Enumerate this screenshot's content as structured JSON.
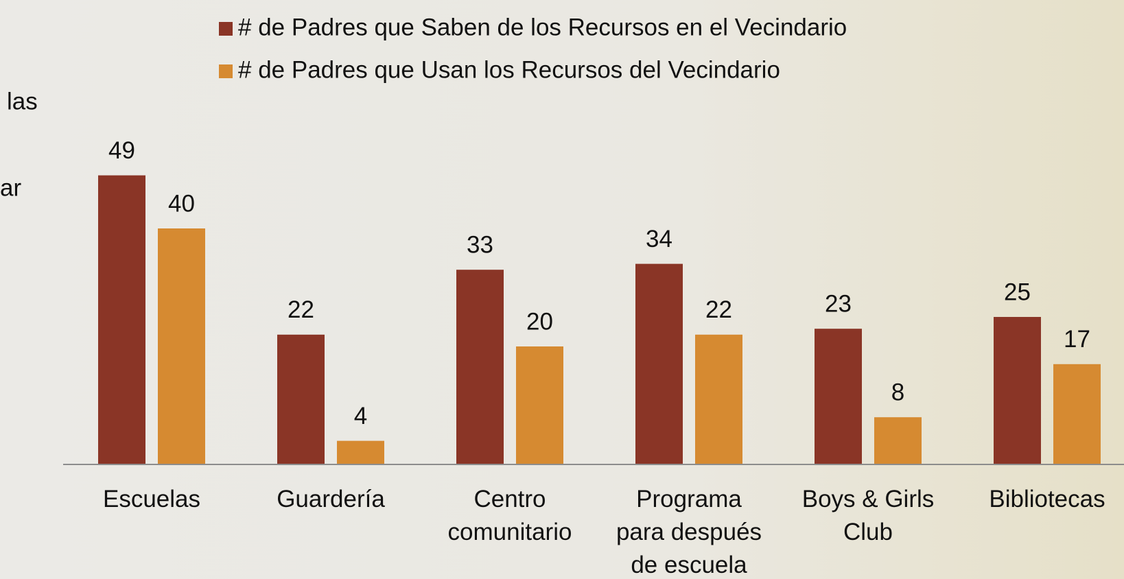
{
  "chart_data": {
    "type": "bar",
    "categories": [
      "Escuelas",
      "Guardería",
      "Centro\ncomunitario",
      "Programa\npara después\nde escuela",
      "Boys & Girls\nClub",
      "Bibliotecas"
    ],
    "series": [
      {
        "name": "# de Padres que Saben de los Recursos en el Vecindario",
        "color": "#8a3526",
        "values": [
          49,
          22,
          33,
          34,
          23,
          25
        ]
      },
      {
        "name": "# de Padres que Usan los Recursos del Vecindario",
        "color": "#d68a31",
        "values": [
          40,
          4,
          20,
          22,
          8,
          17
        ]
      }
    ],
    "ylim": [
      0,
      55
    ],
    "annotations": [
      "las",
      "ar"
    ]
  }
}
